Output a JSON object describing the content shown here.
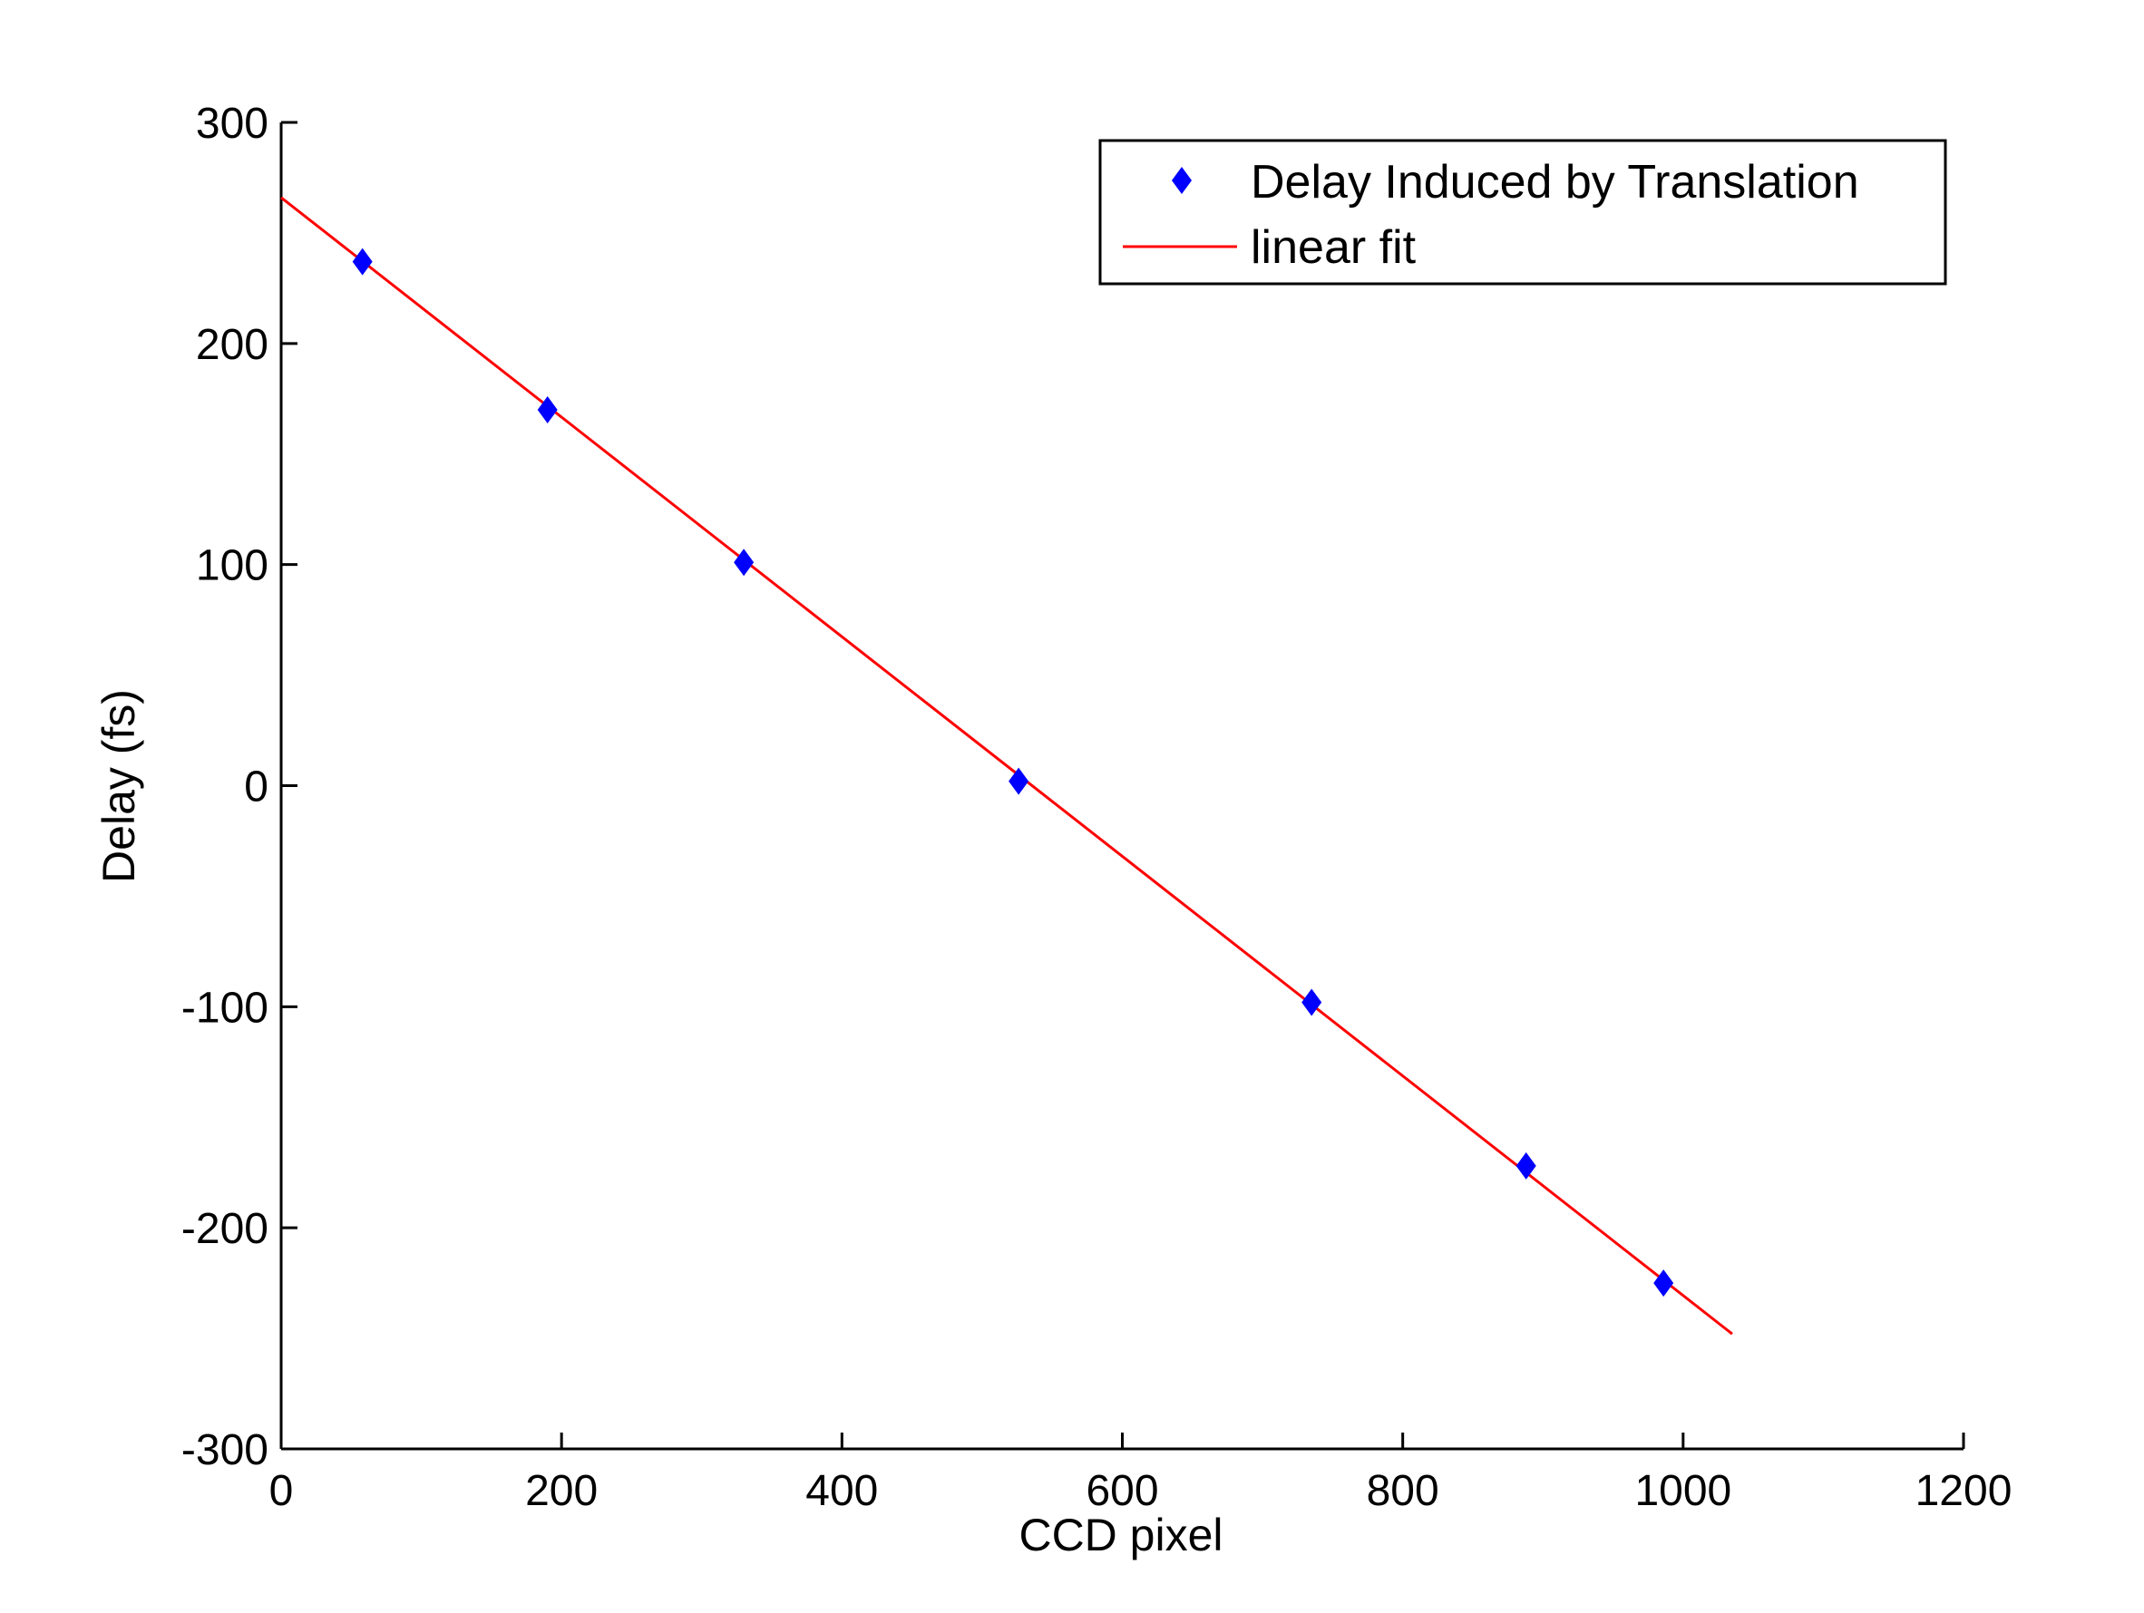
{
  "chart_data": {
    "type": "scatter",
    "title": "",
    "xlabel": "CCD pixel",
    "ylabel": "Delay (fs)",
    "xlim": [
      0,
      1200
    ],
    "ylim": [
      -300,
      300
    ],
    "xticks": [
      0,
      200,
      400,
      600,
      800,
      1000,
      1200
    ],
    "yticks": [
      -300,
      -200,
      -100,
      0,
      100,
      200,
      300
    ],
    "grid": false,
    "legend_position": "top-right",
    "series": [
      {
        "name": "Delay Induced by Translation",
        "kind": "scatter",
        "marker": "diamond",
        "color": "#0000ff",
        "x": [
          58,
          190,
          330,
          526,
          735,
          888,
          986
        ],
        "y": [
          237,
          170,
          101,
          2,
          -98,
          -172,
          -225
        ]
      },
      {
        "name": "linear fit",
        "kind": "line",
        "color": "#ff0000",
        "x": [
          0,
          1035
        ],
        "y": [
          266,
          -248
        ]
      }
    ]
  }
}
